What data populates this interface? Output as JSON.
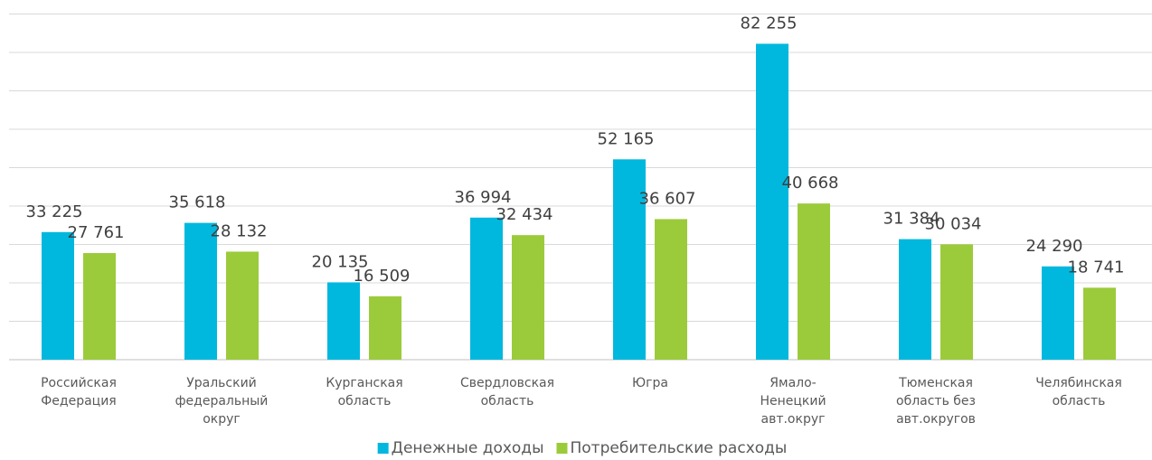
{
  "chart_data": {
    "type": "bar",
    "categories": [
      "Российская\nФедерация",
      "Уральский\nфедеральный\nокруг",
      "Курганская\nобласть",
      "Свердловская\nобласть",
      "Югра",
      "Ямало-\nНенецкий\nавт.округ",
      "Тюменская\nобласть без\nавт.округов",
      "Челябинская\nобласть"
    ],
    "series": [
      {
        "name": "Денежные доходы",
        "color": "#00b8de",
        "values": [
          33225,
          35618,
          20135,
          36994,
          52165,
          82255,
          31384,
          24290
        ],
        "value_labels": [
          "33 225",
          "35 618",
          "20 135",
          "36 994",
          "52 165",
          "82 255",
          "31 384",
          "24 290"
        ]
      },
      {
        "name": "Потребительские расходы",
        "color": "#9bcb3b",
        "values": [
          27761,
          28132,
          16509,
          32434,
          36607,
          40668,
          30034,
          18741
        ],
        "value_labels": [
          "27 761",
          "28 132",
          "16 509",
          "32 434",
          "36 607",
          "40 668",
          "30 034",
          "18 741"
        ]
      }
    ],
    "ylim": [
      0,
      90000
    ],
    "yticks": [
      0,
      10000,
      20000,
      30000,
      40000,
      50000,
      60000,
      70000,
      80000,
      90000
    ],
    "grid": true,
    "legend": "bottom"
  }
}
